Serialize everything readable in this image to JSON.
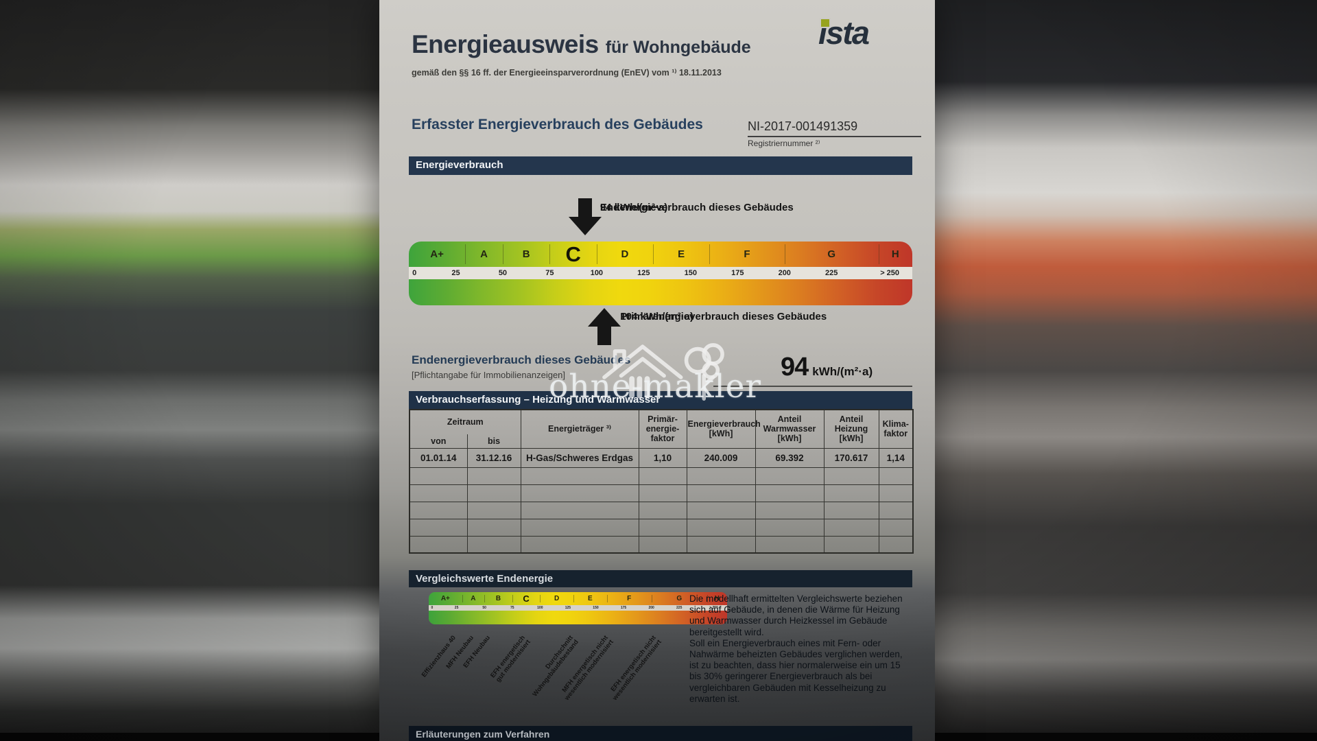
{
  "header": {
    "title": "Energieausweis",
    "title_suffix": "für Wohngebäude",
    "subtitle": "gemäß den §§ 16 ff. der Energieeinsparverordnung (EnEV) vom ¹⁾ 18.11.2013",
    "logo": "ista"
  },
  "main": {
    "heading": "Erfasster Energieverbrauch des Gebäudes",
    "registration": {
      "number": "NI-2017-001491359",
      "label": "Registriernummer ²⁾"
    }
  },
  "bars": {
    "energieverbrauch": "Energieverbrauch",
    "verbrauchserfassung": "Verbrauchserfassung – Heizung und Warmwasser",
    "vergleichswerte": "Vergleichswerte Endenergie",
    "footer": "Erläuterungen zum Verfahren"
  },
  "scale": {
    "axis_max": 268,
    "classes": [
      {
        "label": "A+",
        "min": 0,
        "max": 30
      },
      {
        "label": "A",
        "min": 30,
        "max": 50
      },
      {
        "label": "B",
        "min": 50,
        "max": 75
      },
      {
        "label": "C",
        "min": 75,
        "max": 100,
        "emphasis": true
      },
      {
        "label": "D",
        "min": 100,
        "max": 130
      },
      {
        "label": "E",
        "min": 130,
        "max": 160
      },
      {
        "label": "F",
        "min": 160,
        "max": 200
      },
      {
        "label": "G",
        "min": 200,
        "max": 250
      },
      {
        "label": "H",
        "min": 250,
        "max": 268
      }
    ],
    "ticks": [
      {
        "label": "0",
        "value": 3
      },
      {
        "label": "25",
        "value": 25
      },
      {
        "label": "50",
        "value": 50
      },
      {
        "label": "75",
        "value": 75
      },
      {
        "label": "100",
        "value": 100
      },
      {
        "label": "125",
        "value": 125
      },
      {
        "label": "150",
        "value": 150
      },
      {
        "label": "175",
        "value": 175
      },
      {
        "label": "200",
        "value": 200
      },
      {
        "label": "225",
        "value": 225
      },
      {
        "label": "> 250",
        "value": 256
      }
    ],
    "arrows": {
      "end": {
        "label": "Endenergieverbrauch dieses Gebäudes",
        "value_label": "94 kWh/(m²·a)",
        "value": 94
      },
      "prim": {
        "label": "Primärenergieverbrauch dieses Gebäudes",
        "value_label": "104 kWh/(m²·a)",
        "value": 104
      }
    }
  },
  "endline": {
    "title": "Endenergieverbrauch dieses Gebäudes",
    "subtitle": "[Pflichtangabe für Immobilienanzeigen]",
    "value": "94",
    "unit": "kWh/(m²·a)"
  },
  "table": {
    "headers": {
      "zeitraum": "Zeitraum",
      "von": "von",
      "bis": "bis",
      "energietraeger": "Energieträger ³⁾",
      "primaerfaktor": "Primär-\nenergie-\nfaktor",
      "energieverbrauch": "Energieverbrauch\n[kWh]",
      "anteil_warmwasser": "Anteil\nWarmwasser\n[kWh]",
      "anteil_heizung": "Anteil Heizung\n[kWh]",
      "klimafaktor": "Klima-\nfaktor"
    },
    "row": [
      "01.01.14",
      "31.12.16",
      "H-Gas/Schweres Erdgas",
      "1,10",
      "240.009",
      "69.392",
      "170.617",
      "1,14"
    ],
    "empty_row_count": 5
  },
  "comparison": {
    "labels": [
      {
        "text": "Effizienzhaus 40",
        "value": 21
      },
      {
        "text": "MFH Neubau",
        "value": 37
      },
      {
        "text": "EFH Neubau",
        "value": 52
      },
      {
        "text": "EFH energetisch\ngut modernisiert",
        "value": 83
      },
      {
        "text": "Durchschnitt\nWohngebäudebestand",
        "value": 126
      },
      {
        "text": "MFH energetisch nicht\nwesentlich modernisiert",
        "value": 158
      },
      {
        "text": "EFH energetisch nicht\nwesentlich modernisiert",
        "value": 201
      }
    ],
    "p1": "Die modellhaft ermittelten Vergleichswerte beziehen sich auf Gebäude, in denen die Wärme für Heizung und Warmwasser durch Heizkessel im Gebäude bereitgestellt wird.",
    "p2": "Soll ein Energieverbrauch eines mit Fern- oder Nahwärme beheizten Gebäudes verglichen werden, ist zu beachten, dass hier normalerweise ein um 15 bis 30% geringerer Energieverbrauch als bei vergleichbaren Gebäuden mit Kesselheizung zu erwarten ist."
  },
  "watermark": {
    "text": "ohne-makler"
  },
  "colors": {
    "navy_bar": "#24364d",
    "scale_green": "#3ea43c",
    "scale_red": "#bf3629",
    "logo_green": "#97a31d"
  }
}
